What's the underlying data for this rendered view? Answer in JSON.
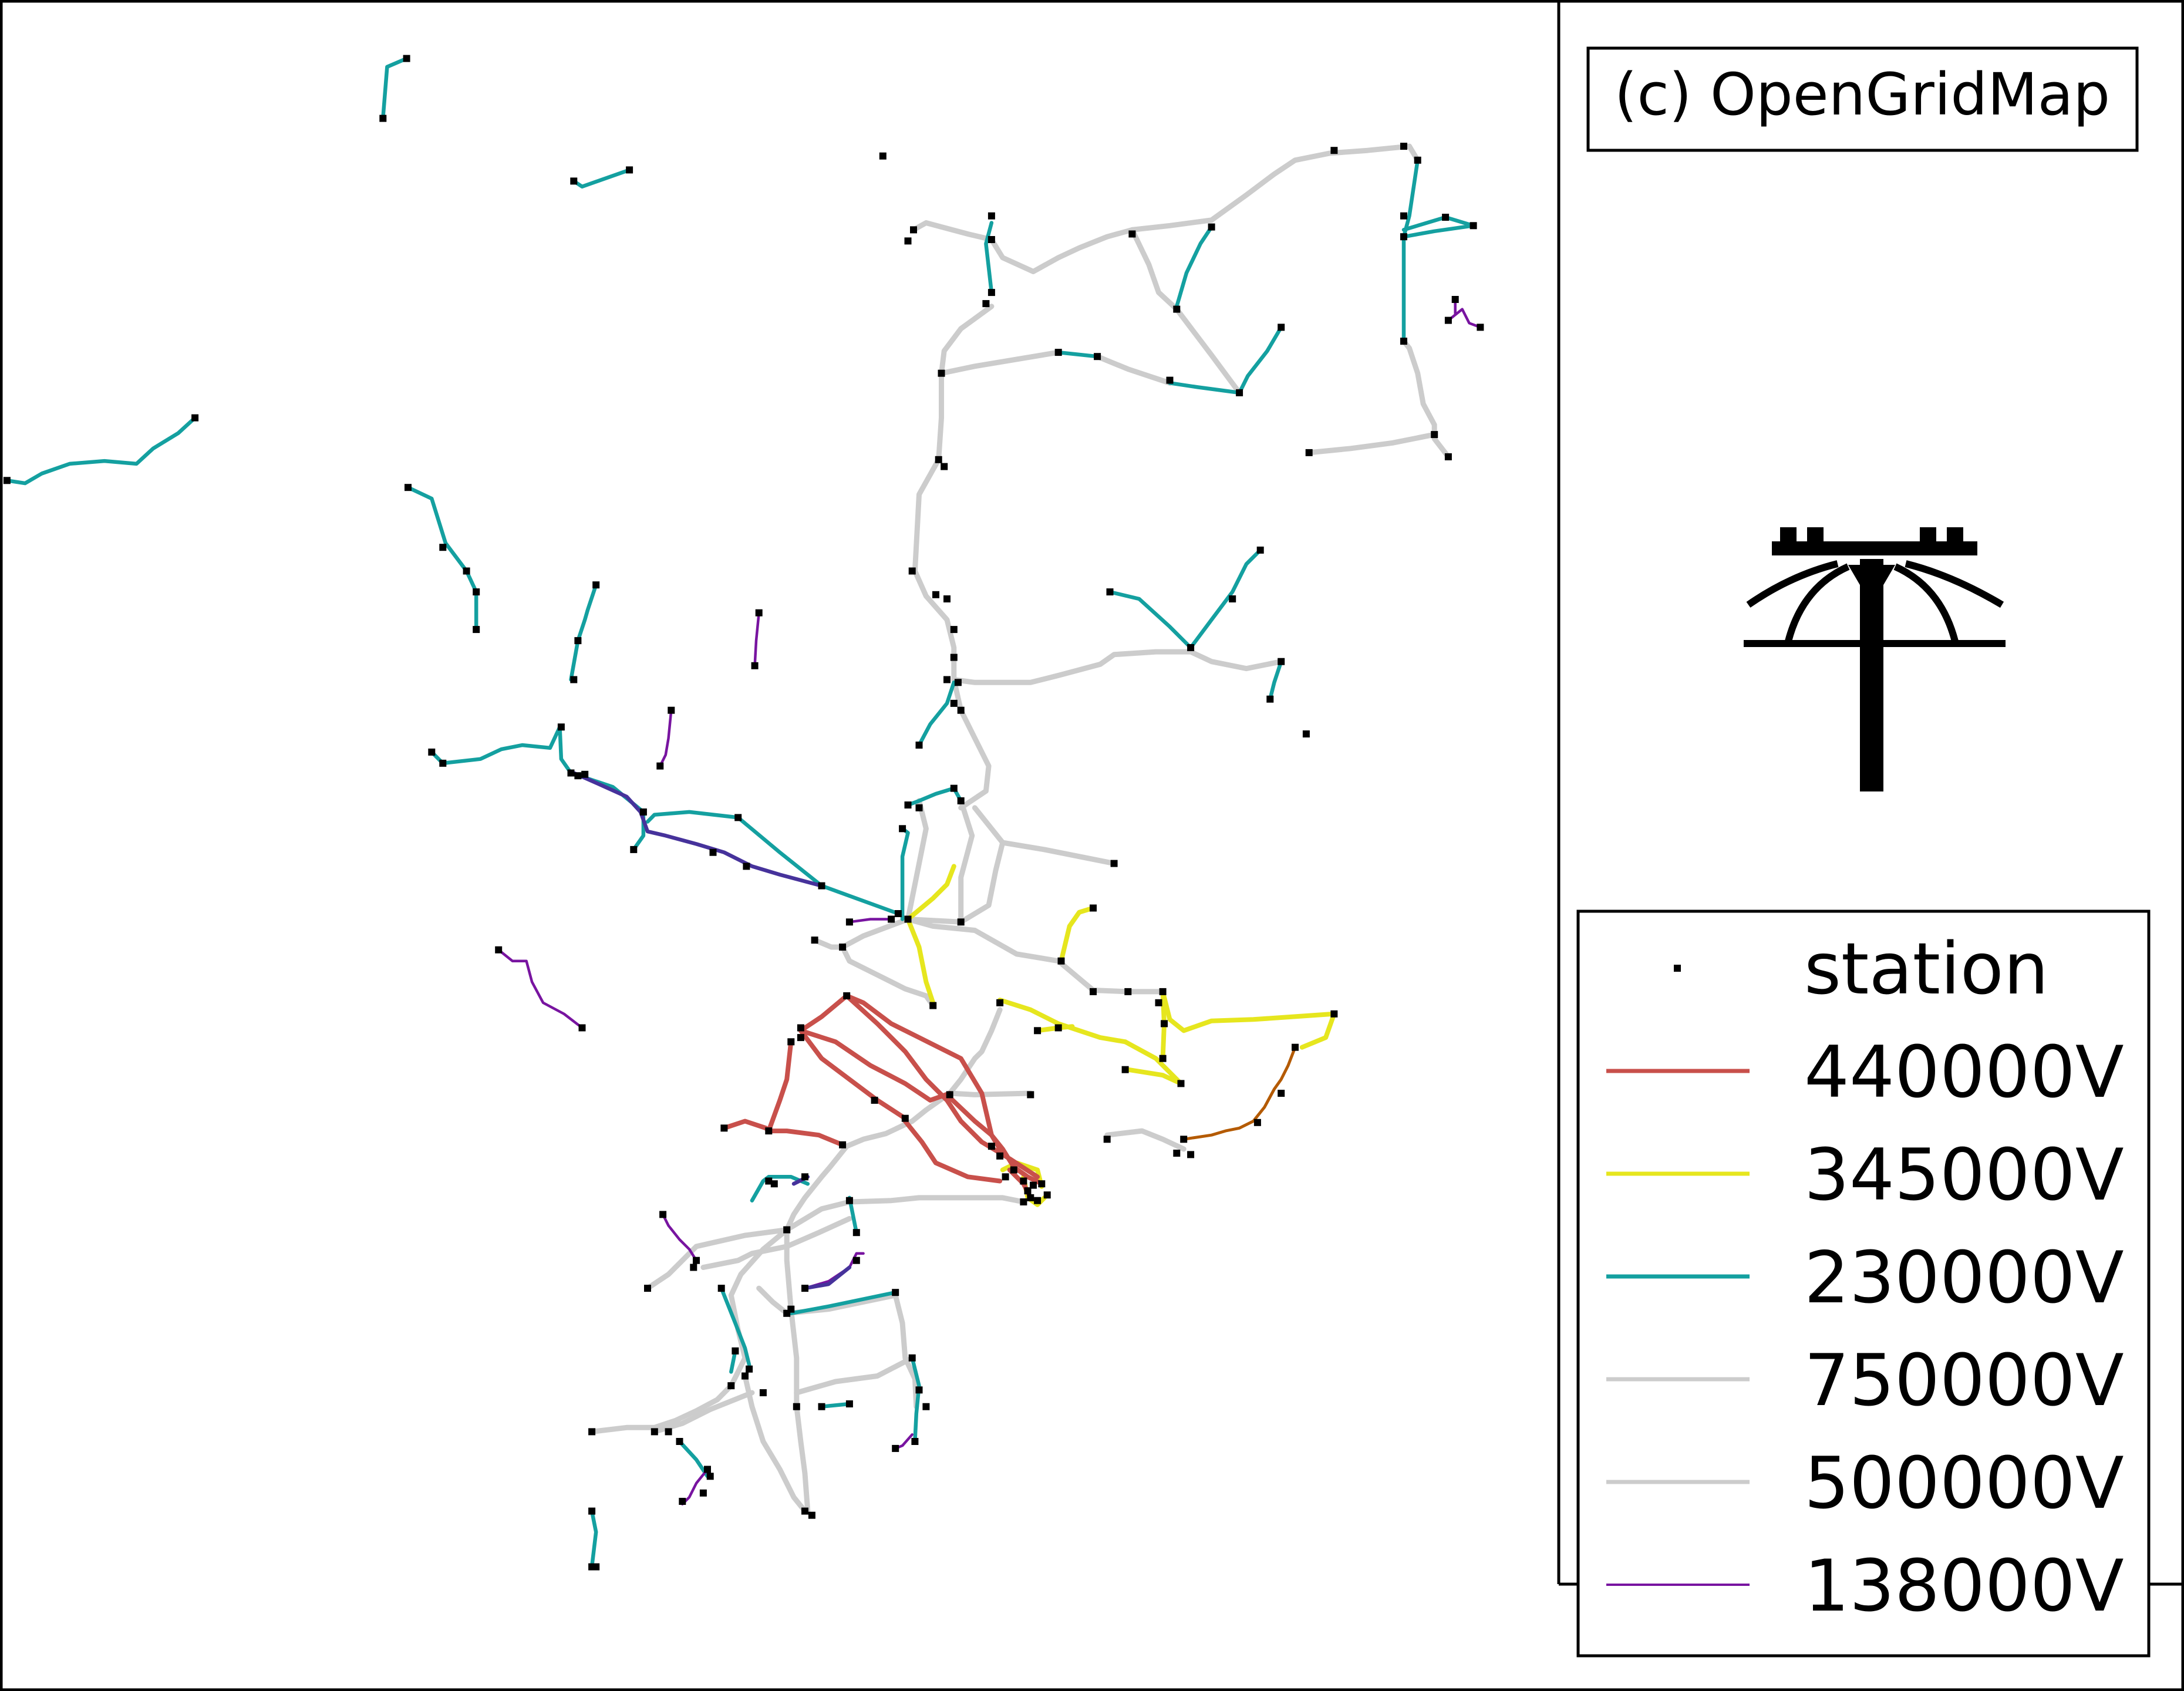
{
  "attribution": "(c) OpenGridMap",
  "legend": {
    "station_label": "station",
    "entries": [
      {
        "label": "440000V",
        "color": "#c8504b",
        "width": "normal"
      },
      {
        "label": "345000V",
        "color": "#e6e61e",
        "width": "normal"
      },
      {
        "label": "230000V",
        "color": "#14a0a0",
        "width": "normal"
      },
      {
        "label": "750000V",
        "color": "#cccccc",
        "width": "normal"
      },
      {
        "label": "500000V",
        "color": "#cccccc",
        "width": "normal"
      },
      {
        "label": "138000V",
        "color": "#7814a0",
        "width": "thin"
      }
    ]
  },
  "logo_icon": "power-pole-icon",
  "colors": {
    "v440": "#c8504b",
    "v345": "#e6e61e",
    "v230": "#14a0a0",
    "v750_500": "#cccccc",
    "v138": "#7814a0",
    "v_dark": "#46329b",
    "v_brown": "#b45a00",
    "station": "#000000"
  }
}
